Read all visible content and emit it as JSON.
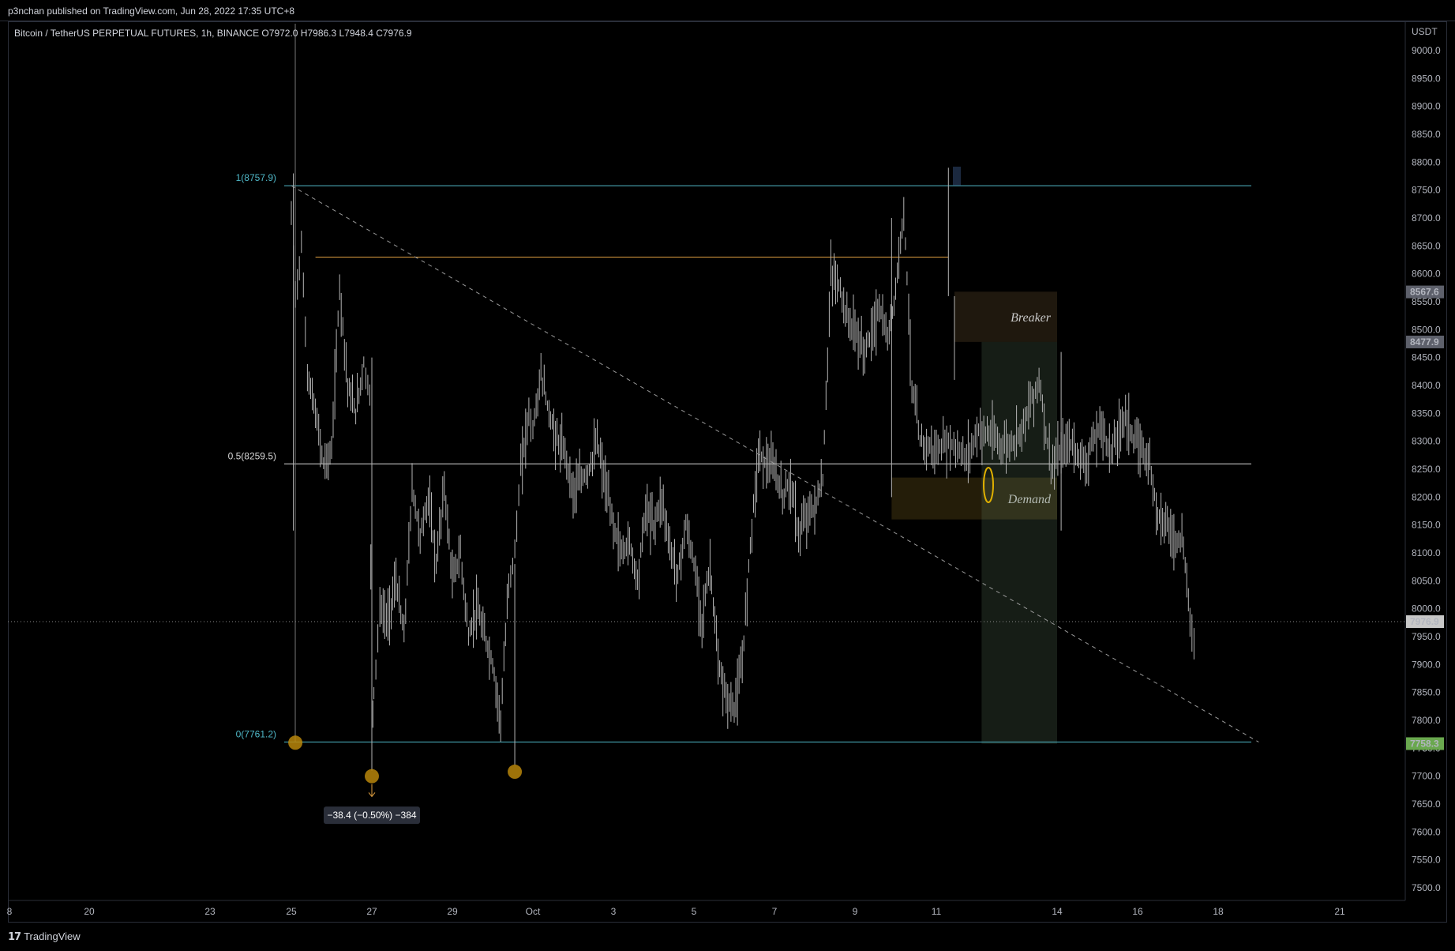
{
  "header": {
    "published": "p3nchan published on TradingView.com, Jun 28, 2022 17:35 UTC+8"
  },
  "symbol_info": "Bitcoin / TetherUS PERPETUAL FUTURES, 1h, BINANCE  O7972.0  H7986.3  L7948.4  C7976.9",
  "footer": {
    "logo_text": "TradingView"
  },
  "colors": {
    "background": "#000000",
    "candle": "#b4b4b4",
    "fib": "#4fb8c8",
    "swing_line": "#e0a040",
    "marker": "#b8860b",
    "tag_green": "#6aa84f"
  },
  "chart_data": {
    "type": "line",
    "title": "",
    "currency": "USDT",
    "ylim": [
      7440,
      9030
    ],
    "y_ticks": [
      9000.0,
      8950.0,
      8900.0,
      8850.0,
      8800.0,
      8750.0,
      8700.0,
      8650.0,
      8600.0,
      8550.0,
      8500.0,
      8450.0,
      8400.0,
      8350.0,
      8300.0,
      8250.0,
      8200.0,
      8150.0,
      8100.0,
      8050.0,
      8000.0,
      7950.0,
      7900.0,
      7850.0,
      7800.0,
      7750.0,
      7700.0,
      7650.0,
      7600.0,
      7550.0,
      7500.0
    ],
    "x_ticks": [
      {
        "label": "8",
        "day": 8.0
      },
      {
        "label": "20",
        "day": 20.0
      },
      {
        "label": "23",
        "day": 23.0
      },
      {
        "label": "25",
        "day": 25.0
      },
      {
        "label": "27",
        "day": 27.0
      },
      {
        "label": "29",
        "day": 29.0
      },
      {
        "label": "Oct",
        "day": 31.0
      },
      {
        "label": "3",
        "day": 33.0
      },
      {
        "label": "5",
        "day": 35.0
      },
      {
        "label": "7",
        "day": 37.0
      },
      {
        "label": "9",
        "day": 39.0
      },
      {
        "label": "11",
        "day": 41.0
      },
      {
        "label": "14",
        "day": 43.0
      },
      {
        "label": "16",
        "day": 45.0
      },
      {
        "label": "18",
        "day": 47.0
      },
      {
        "label": "21",
        "day": 50.0
      }
    ],
    "series": [
      {
        "x": [
          25.0,
          25.1,
          25.25,
          25.4,
          25.6,
          25.8,
          26.0,
          26.2,
          26.4,
          26.6,
          26.8,
          26.95,
          27.0,
          27.05,
          27.2,
          27.4,
          27.6,
          27.8,
          28.0,
          28.2,
          28.4,
          28.6,
          28.8,
          29.0,
          29.2,
          29.4,
          29.6,
          29.8,
          30.0,
          30.2,
          30.4,
          30.55,
          30.7,
          30.9,
          31.0,
          31.2,
          31.4,
          31.6,
          31.8,
          32.0,
          32.2,
          32.4,
          32.6,
          32.8,
          33.0,
          33.2,
          33.4,
          33.6,
          33.8,
          34.0,
          34.2,
          34.4,
          34.6,
          34.8,
          35.0,
          35.2,
          35.4,
          35.6,
          35.8,
          36.0,
          36.2,
          36.4,
          36.6,
          36.8,
          37.0,
          37.2,
          37.4,
          37.6,
          37.8,
          38.0,
          38.2,
          38.4,
          38.6,
          38.8,
          39.0,
          39.2,
          39.4,
          39.6,
          39.8,
          40.0,
          40.2,
          40.4,
          40.6,
          40.8,
          41.0,
          41.2,
          41.5,
          41.7,
          41.9,
          42.1,
          42.3,
          42.5,
          42.7,
          42.9,
          43.1,
          43.3,
          43.5,
          43.7,
          43.9,
          44.1,
          44.3,
          44.5,
          44.7,
          44.9,
          45.1,
          45.3,
          45.5,
          45.7,
          45.9,
          46.1,
          46.3,
          46.45
        ],
        "values": [
          8700,
          8560,
          8650,
          8420,
          8350,
          8260,
          8280,
          8580,
          8400,
          8350,
          8440,
          8380,
          7800,
          7850,
          8000,
          7980,
          8050,
          7950,
          8220,
          8130,
          8200,
          8080,
          8220,
          8050,
          8100,
          7950,
          8000,
          7950,
          7900,
          7800,
          8050,
          8100,
          8250,
          8350,
          8320,
          8420,
          8350,
          8300,
          8280,
          8210,
          8230,
          8250,
          8300,
          8220,
          8150,
          8100,
          8120,
          8050,
          8180,
          8150,
          8200,
          8110,
          8060,
          8150,
          8080,
          7980,
          8080,
          7900,
          7840,
          7820,
          7900,
          8120,
          8280,
          8260,
          8250,
          8200,
          8230,
          8130,
          8170,
          8180,
          8230,
          8600,
          8580,
          8520,
          8500,
          8460,
          8490,
          8540,
          8480,
          8570,
          8720,
          8400,
          8300,
          8290,
          8280,
          8300,
          8270,
          8320,
          8310,
          8290,
          8300,
          8350,
          8410,
          8250,
          8280,
          8300,
          8280,
          8260,
          8300,
          8330,
          8280,
          8310,
          8350,
          8300,
          8290,
          8260,
          8170,
          8160,
          8120,
          8130,
          7990,
          7910
        ]
      }
    ],
    "fib_levels": [
      {
        "label": "1(8757.9)",
        "value": 8757.9
      },
      {
        "label": "0.5(8259.5)",
        "value": 8259.5
      },
      {
        "label": "0(7761.2)",
        "value": 7761.2
      }
    ],
    "swing_high_line": {
      "value": 8630,
      "x_start": 25.6,
      "x_end": 41.2
    },
    "trend_line": {
      "x_start": 25.0,
      "y_start": 8757.9,
      "x_end": 48.0,
      "y_end": 7761.2
    },
    "zones": [
      {
        "label": "Breaker",
        "x_start": 41.3,
        "x_end": 43.0,
        "y_top": 8568,
        "y_bottom": 8478
      },
      {
        "label": "Demand",
        "x_start": 39.9,
        "x_end": 43.0,
        "y_top": 8235,
        "y_bottom": 8160
      },
      {
        "label": "",
        "x_start": 41.75,
        "x_end": 43.0,
        "y_top": 8478,
        "y_bottom": 7758
      }
    ],
    "price_tags": [
      {
        "label": "8567.6",
        "value": 8567.6,
        "kind": "gray"
      },
      {
        "label": "8477.9",
        "value": 8477.9,
        "kind": "gray"
      },
      {
        "label": "7976.9",
        "value": 7976.9,
        "kind": "current"
      },
      {
        "label": "7758.3",
        "value": 7758.3,
        "kind": "green"
      }
    ],
    "current_price": 7976.9,
    "markers": [
      {
        "x": 25.1,
        "y": 7760
      },
      {
        "x": 27.0,
        "y": 7700
      },
      {
        "x": 30.55,
        "y": 7708
      }
    ],
    "measure_label": "−38.4 (−0.50%) −384",
    "measure_anchor": {
      "x": 27.0,
      "y": 7630
    }
  }
}
